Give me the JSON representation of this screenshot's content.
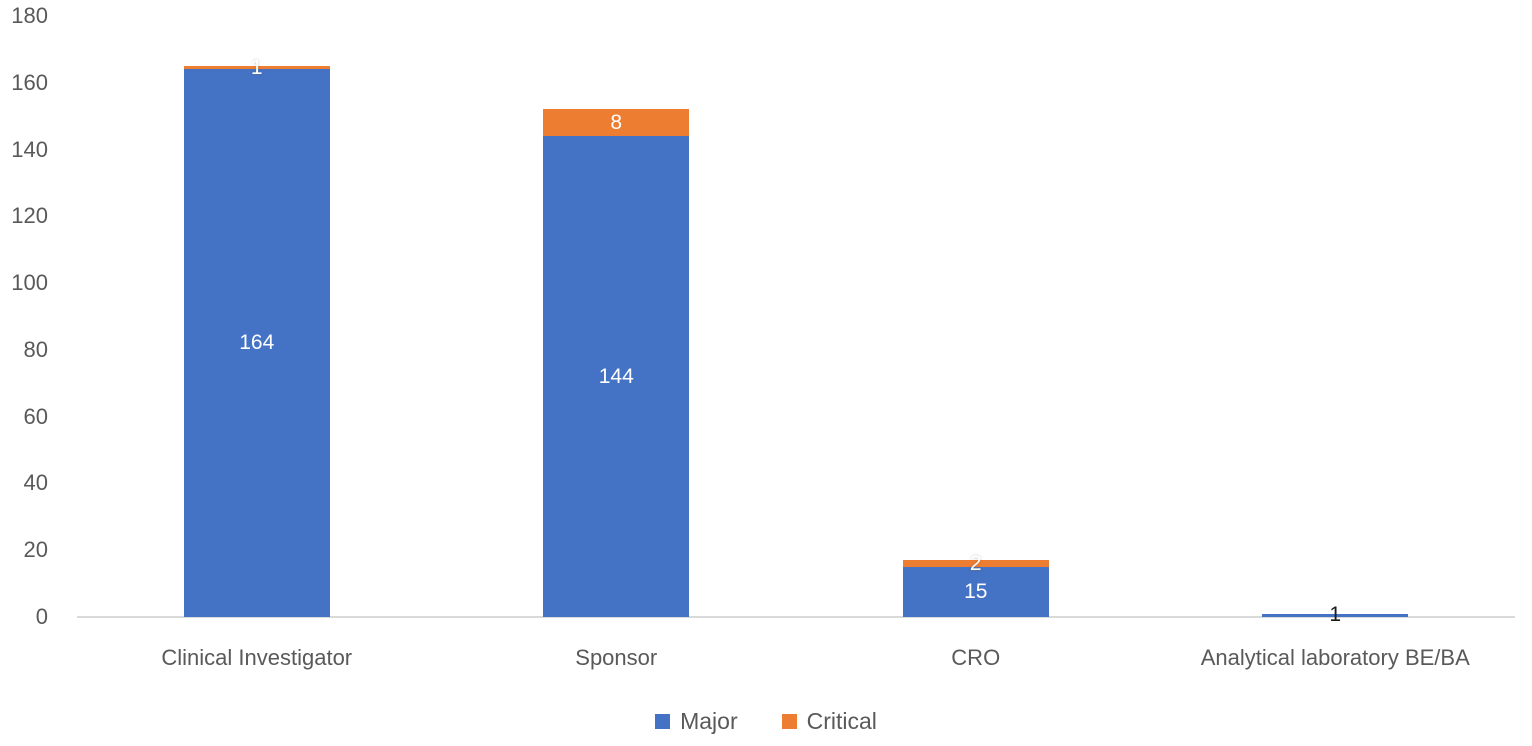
{
  "chart_data": {
    "type": "bar",
    "stacked": true,
    "title": "",
    "xlabel": "",
    "ylabel": "",
    "categories": [
      "Clinical Investigator",
      "Sponsor",
      "CRO",
      "Analytical laboratory BE/BA"
    ],
    "series": [
      {
        "name": "Major",
        "color": "#4472C4",
        "values": [
          164,
          144,
          15,
          1
        ],
        "labels": [
          "164",
          "144",
          "15",
          "1"
        ],
        "label_colors": [
          "#ffffff",
          "#ffffff",
          "#ffffff",
          "#1a1a1a"
        ]
      },
      {
        "name": "Critical",
        "color": "#ED7D31",
        "values": [
          1,
          8,
          2,
          0
        ],
        "labels": [
          "1",
          "8",
          "2",
          ""
        ],
        "label_colors": [
          "#ffffff",
          "#ffffff",
          "#ffffff",
          ""
        ]
      }
    ],
    "totals": [
      165,
      152,
      17,
      1
    ],
    "ylim": [
      0,
      180
    ],
    "ytick_step": 20,
    "yticks": [
      0,
      20,
      40,
      60,
      80,
      100,
      120,
      140,
      160,
      180
    ],
    "grid": false,
    "legend_position": "bottom",
    "axis_line_color": "#D9D9D9",
    "text_color": "#595959",
    "background_color": "#ffffff"
  }
}
